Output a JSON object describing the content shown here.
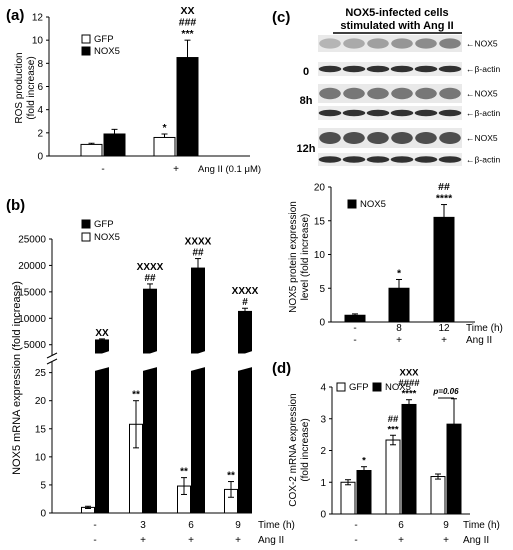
{
  "panel_labels": {
    "a": "(a)",
    "b": "(b)",
    "c": "(c)",
    "d": "(d)"
  },
  "colors": {
    "gfp": "#ffffff",
    "nox5": "#000000",
    "stroke": "#000000"
  },
  "western": {
    "title_line1": "NOX5-infected cells",
    "title_line2": "stimulated with  Ang II",
    "times": [
      "0",
      "8h",
      "12h"
    ],
    "band_labels": [
      "NOX5",
      "β-actin"
    ]
  },
  "chart_data": [
    {
      "id": "a",
      "type": "bar",
      "ylabel": "ROS production (fold increase)",
      "ylim": [
        0,
        12
      ],
      "yticks": [
        0,
        2,
        4,
        6,
        8,
        10,
        12
      ],
      "groups": [
        "-",
        "+"
      ],
      "xlabel": "Ang II (0.1 μM)",
      "legend": [
        "GFP",
        "NOX5"
      ],
      "series": [
        {
          "name": "GFP",
          "values": [
            1.0,
            1.6
          ],
          "errors": [
            0.1,
            0.3
          ]
        },
        {
          "name": "NOX5",
          "values": [
            1.9,
            8.5
          ],
          "errors": [
            0.4,
            1.5
          ]
        }
      ],
      "annotations": [
        {
          "group": 1,
          "series": 0,
          "lines": [
            "*"
          ]
        },
        {
          "group": 1,
          "series": 1,
          "lines": [
            "XX",
            "###",
            "***"
          ]
        }
      ]
    },
    {
      "id": "b",
      "type": "bar",
      "ylabel": "NOX5 mRNA expression (fold increase)",
      "legend": [
        "GFP",
        "NOX5"
      ],
      "lower_yticks": [
        0,
        5,
        10,
        15,
        20,
        25
      ],
      "lower_ylim": [
        0,
        26
      ],
      "upper_yticks": [
        5000,
        10000,
        15000,
        20000,
        25000
      ],
      "upper_ylim": [
        4000,
        25000
      ],
      "time_row": [
        "-",
        "3",
        "6",
        "9"
      ],
      "time_label": "Time (h)",
      "ang_row": [
        "-",
        "+",
        "+",
        "+"
      ],
      "ang_label": "Ang II",
      "series": [
        {
          "name": "GFP",
          "values": [
            1.0,
            15.8,
            4.8,
            4.2
          ],
          "errors": [
            0.2,
            4.2,
            1.5,
            1.4
          ]
        },
        {
          "name": "NOX5",
          "values": [
            5900,
            15500,
            19500,
            11300
          ],
          "errors": [
            200,
            1000,
            1800,
            600
          ]
        }
      ],
      "annotations": [
        {
          "group": 1,
          "series": 0,
          "lines": [
            "**"
          ]
        },
        {
          "group": 2,
          "series": 0,
          "lines": [
            "**"
          ]
        },
        {
          "group": 3,
          "series": 0,
          "lines": [
            "**"
          ]
        },
        {
          "group": 0,
          "series": 1,
          "lines": [
            "XX"
          ]
        },
        {
          "group": 1,
          "series": 1,
          "lines": [
            "XXXX",
            "##"
          ]
        },
        {
          "group": 2,
          "series": 1,
          "lines": [
            "XXXX",
            "##"
          ]
        },
        {
          "group": 3,
          "series": 1,
          "lines": [
            "XXXX",
            "#"
          ]
        }
      ]
    },
    {
      "id": "c",
      "type": "bar",
      "ylabel": "NOX5 protein expression level (fold increase)",
      "ylim": [
        0,
        20
      ],
      "yticks": [
        0,
        5,
        10,
        15,
        20
      ],
      "legend": [
        "NOX5"
      ],
      "time_row": [
        "-",
        "8",
        "12"
      ],
      "time_label": "Time (h)",
      "ang_row": [
        "-",
        "+",
        "+"
      ],
      "ang_label": "Ang II",
      "series": [
        {
          "name": "NOX5",
          "values": [
            1.0,
            5.0,
            15.5
          ],
          "errors": [
            0.2,
            1.3,
            1.9
          ]
        }
      ],
      "annotations": [
        {
          "group": 1,
          "series": 0,
          "lines": [
            "*"
          ]
        },
        {
          "group": 2,
          "series": 0,
          "lines": [
            "##",
            "****"
          ]
        }
      ]
    },
    {
      "id": "d",
      "type": "bar",
      "ylabel": "COX-2 mRNA expression (fold increase)",
      "ylim": [
        0,
        4
      ],
      "yticks": [
        0,
        1,
        2,
        3,
        4
      ],
      "legend": [
        "GFP",
        "NOX5"
      ],
      "time_row": [
        "-",
        "6",
        "9"
      ],
      "time_label": "Time (h)",
      "ang_row": [
        "-",
        "+",
        "+"
      ],
      "ang_label": "Ang II",
      "series": [
        {
          "name": "GFP",
          "values": [
            1.0,
            2.33,
            1.18
          ],
          "errors": [
            0.08,
            0.15,
            0.08
          ]
        },
        {
          "name": "NOX5",
          "values": [
            1.37,
            3.45,
            2.83
          ],
          "errors": [
            0.12,
            0.15,
            0.8
          ]
        }
      ],
      "annotations": [
        {
          "group": 0,
          "series": 1,
          "lines": [
            "*"
          ]
        },
        {
          "group": 1,
          "series": 0,
          "lines": [
            "##",
            "***"
          ]
        },
        {
          "group": 1,
          "series": 1,
          "lines": [
            "XXX",
            "####",
            "****"
          ]
        }
      ],
      "pvalue": "p=0.06"
    }
  ]
}
